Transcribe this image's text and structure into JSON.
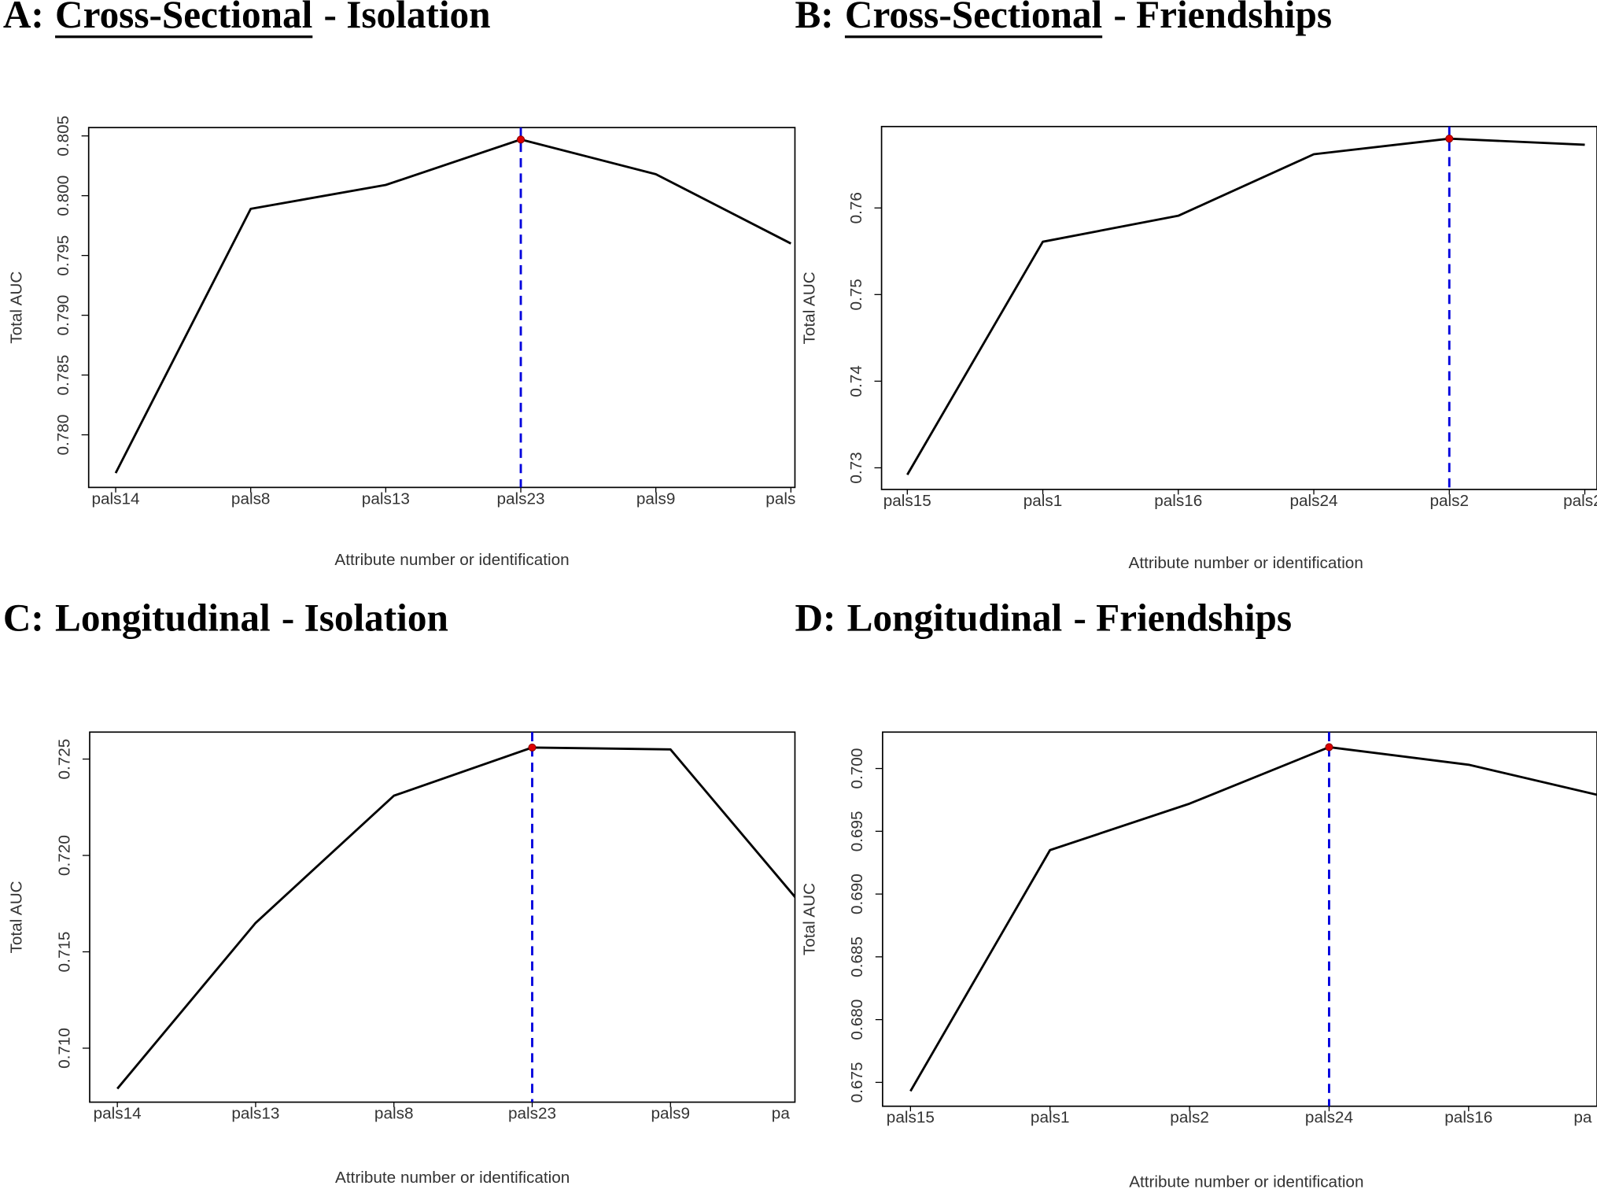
{
  "chart_data": [
    {
      "type": "line",
      "title_prefix": "A:",
      "title_main": "Cross-Sectional",
      "title_suffix": "- Isolation",
      "title_main_underlined": true,
      "x_label": "Attribute number or identification",
      "y_label": "Total AUC",
      "categories": [
        "pals14",
        "pals8",
        "pals13",
        "pals23",
        "pals9",
        "pals"
      ],
      "values": [
        0.7768,
        0.7989,
        0.8009,
        0.8047,
        0.8018,
        0.796
      ],
      "xlim": [
        0.8,
        6.03
      ],
      "ylim": [
        0.7756,
        0.8057
      ],
      "yticks": [
        {
          "value": 0.78,
          "label": "0.780"
        },
        {
          "value": 0.785,
          "label": "0.785"
        },
        {
          "value": 0.79,
          "label": "0.790"
        },
        {
          "value": 0.795,
          "label": "0.795"
        },
        {
          "value": 0.8,
          "label": "0.800"
        },
        {
          "value": 0.805,
          "label": "0.805"
        }
      ],
      "color": "#000000",
      "highlight_index": 3,
      "highlight_color": "#0000dd",
      "point_color": "#dd0000"
    },
    {
      "type": "line",
      "title_prefix": "B:",
      "title_main": "Cross-Sectional",
      "title_suffix": "- Friendships",
      "title_main_underlined": true,
      "x_label": "Attribute number or identification",
      "y_label": "Total AUC",
      "categories": [
        "pals15",
        "pals1",
        "pals16",
        "pals24",
        "pals2",
        "pals2"
      ],
      "values": [
        0.7292,
        0.7561,
        0.7591,
        0.7662,
        0.768,
        0.7673
      ],
      "xlim": [
        0.81,
        6.09
      ],
      "ylim": [
        0.7275,
        0.7694
      ],
      "yticks": [
        0.73,
        0.74,
        0.75,
        0.76
      ],
      "color": "#000000",
      "highlight_index": 4,
      "highlight_color": "#0000dd",
      "point_color": "#dd0000"
    },
    {
      "type": "line",
      "title_prefix": "C:",
      "title_main": "Longitudinal",
      "title_suffix": "- Isolation",
      "title_main_underlined": false,
      "x_label": "Attribute number or identification",
      "y_label": "Total AUC",
      "categories": [
        "pals14",
        "pals13",
        "pals8",
        "pals23",
        "pals9",
        "pa"
      ],
      "values": [
        0.7079,
        0.7165,
        0.7231,
        0.7256,
        0.7255,
        0.717
      ],
      "xlim": [
        0.8,
        5.9
      ],
      "ylim": [
        0.7072,
        0.7264
      ],
      "yticks": [
        {
          "value": 0.71,
          "label": "0.710"
        },
        {
          "value": 0.715,
          "label": "0.715"
        },
        {
          "value": 0.72,
          "label": "0.720"
        },
        {
          "value": 0.725,
          "label": "0.725"
        }
      ],
      "color": "#000000",
      "highlight_index": 3,
      "highlight_color": "#0000dd",
      "point_color": "#dd0000"
    },
    {
      "type": "line",
      "title_prefix": "D:",
      "title_main": "Longitudinal",
      "title_suffix": "- Friendships",
      "title_main_underlined": false,
      "x_label": "Attribute number or identification",
      "y_label": "Total AUC",
      "categories": [
        "pals15",
        "pals1",
        "pals2",
        "pals24",
        "pals16",
        "pa"
      ],
      "values": [
        0.6743,
        0.6935,
        0.6972,
        0.7017,
        0.7003,
        0.6977
      ],
      "xlim": [
        0.8,
        5.92
      ],
      "ylim": [
        0.6731,
        0.7029
      ],
      "yticks": [
        {
          "value": 0.675,
          "label": "0.675"
        },
        {
          "value": 0.68,
          "label": "0.680"
        },
        {
          "value": 0.685,
          "label": "0.685"
        },
        {
          "value": 0.69,
          "label": "0.690"
        },
        {
          "value": 0.695,
          "label": "0.695"
        },
        {
          "value": 0.7,
          "label": "0.700"
        }
      ],
      "color": "#000000",
      "highlight_index": 3,
      "highlight_color": "#0000dd",
      "point_color": "#dd0000"
    }
  ]
}
